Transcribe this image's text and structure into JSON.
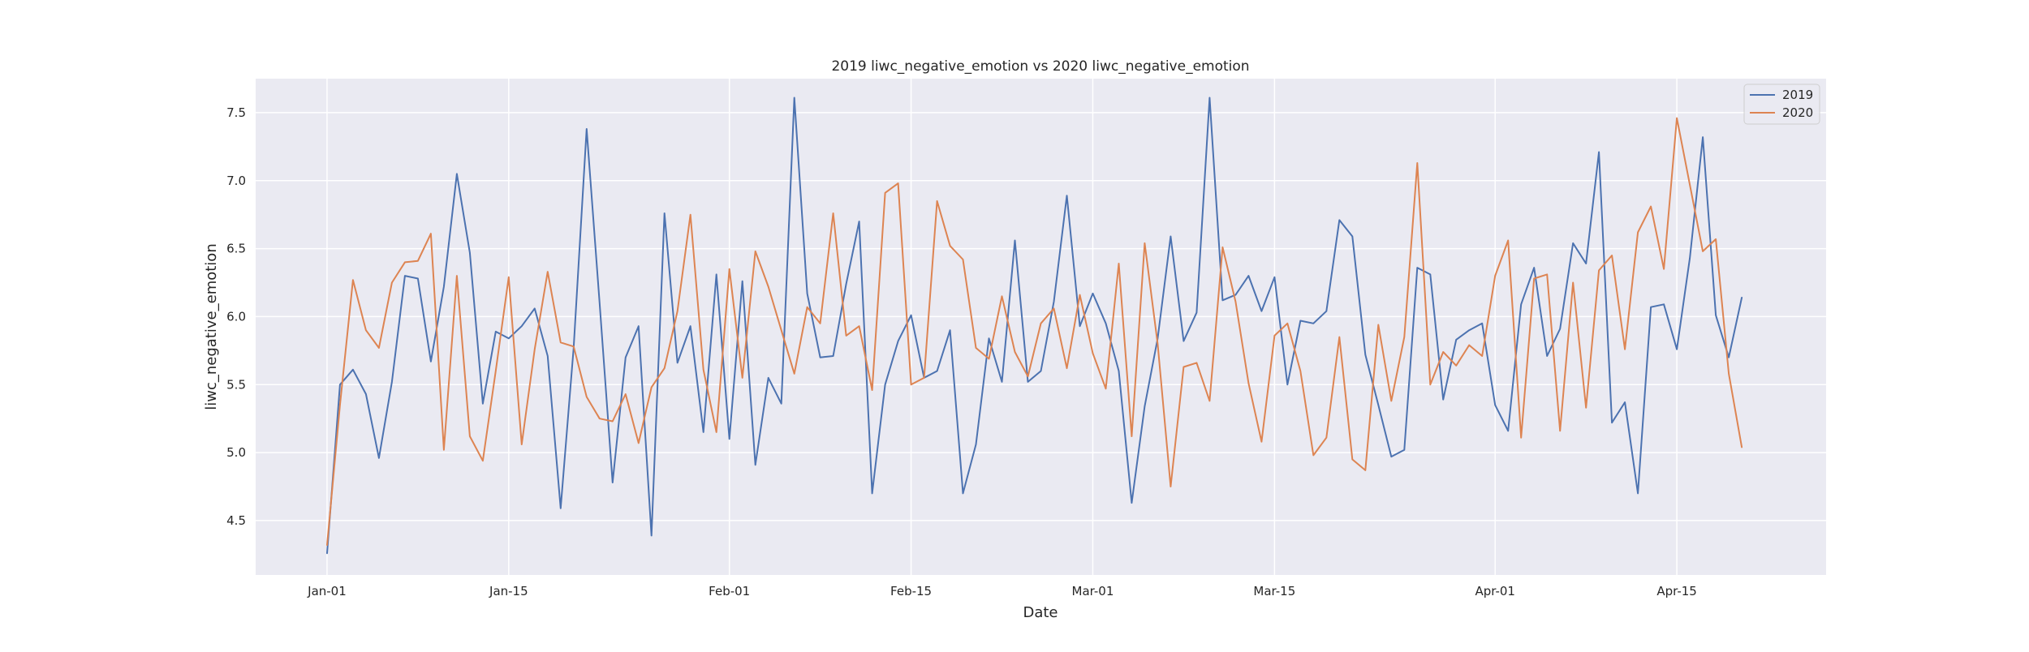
{
  "chart_data": {
    "type": "line",
    "title": "2019 liwc_negative_emotion vs 2020 liwc_negative_emotion",
    "xlabel": "Date",
    "ylabel": "liwc_negative_emotion",
    "ylim": [
      4.1,
      7.75
    ],
    "xlim_days": [
      -5.5,
      115.5
    ],
    "grid": true,
    "legend_position": "top-right",
    "x_ticks": [
      {
        "day": 0,
        "label": "Jan-01"
      },
      {
        "day": 14,
        "label": "Jan-15"
      },
      {
        "day": 31,
        "label": "Feb-01"
      },
      {
        "day": 45,
        "label": "Feb-15"
      },
      {
        "day": 59,
        "label": "Mar-01"
      },
      {
        "day": 73,
        "label": "Mar-15"
      },
      {
        "day": 90,
        "label": "Apr-01"
      },
      {
        "day": 104,
        "label": "Apr-15"
      }
    ],
    "y_ticks": [
      4.5,
      5.0,
      5.5,
      6.0,
      6.5,
      7.0,
      7.5
    ],
    "y_tick_labels": [
      "4.5",
      "5.0",
      "5.5",
      "6.0",
      "6.5",
      "7.0",
      "7.5"
    ],
    "series": [
      {
        "name": "2019",
        "color": "#4c72b0",
        "values": [
          4.26,
          5.5,
          5.61,
          5.43,
          4.96,
          5.52,
          6.3,
          6.28,
          5.67,
          6.22,
          7.05,
          6.47,
          5.36,
          5.89,
          5.84,
          5.93,
          6.06,
          5.71,
          4.59,
          5.77,
          7.38,
          6.1,
          4.78,
          5.7,
          5.93,
          4.39,
          6.76,
          5.66,
          5.93,
          5.15,
          6.31,
          5.1,
          6.26,
          4.91,
          5.55,
          5.36,
          7.61,
          6.17,
          5.7,
          5.71,
          6.24,
          6.7,
          4.7,
          5.5,
          5.82,
          6.01,
          5.55,
          5.6,
          5.9,
          4.7,
          5.06,
          5.84,
          5.52,
          6.56,
          5.52,
          5.6,
          6.11,
          6.89,
          5.93,
          6.17,
          5.95,
          5.6,
          4.63,
          5.34,
          5.84,
          6.59,
          5.82,
          6.03,
          7.61,
          6.12,
          6.16,
          6.3,
          6.04,
          6.29,
          5.5,
          5.97,
          5.95,
          6.04,
          6.71,
          6.59,
          5.72,
          5.35,
          4.97,
          5.02,
          6.36,
          6.31,
          5.39,
          5.83,
          5.9,
          5.95,
          5.35,
          5.16,
          6.09,
          6.36,
          5.71,
          5.91,
          6.54,
          6.39,
          7.21,
          5.22,
          5.37,
          4.7,
          6.07,
          6.09,
          5.76,
          6.43,
          7.32,
          6.01,
          5.7,
          6.14
        ]
      },
      {
        "name": "2020",
        "color": "#dd8452",
        "values": [
          4.32,
          5.35,
          6.27,
          5.9,
          5.77,
          6.25,
          6.4,
          6.41,
          6.61,
          5.02,
          6.3,
          5.12,
          4.94,
          5.6,
          6.29,
          5.06,
          5.76,
          6.33,
          5.81,
          5.78,
          5.41,
          5.25,
          5.23,
          5.43,
          5.07,
          5.48,
          5.62,
          6.04,
          6.75,
          5.61,
          5.15,
          6.35,
          5.55,
          6.48,
          6.22,
          5.9,
          5.58,
          6.07,
          5.95,
          6.76,
          5.86,
          5.93,
          5.46,
          6.91,
          6.98,
          5.5,
          5.55,
          6.85,
          6.52,
          6.42,
          5.77,
          5.69,
          6.15,
          5.74,
          5.56,
          5.95,
          6.06,
          5.62,
          6.16,
          5.73,
          5.47,
          6.39,
          5.12,
          6.54,
          5.8,
          4.75,
          5.63,
          5.66,
          5.38,
          6.51,
          6.11,
          5.51,
          5.08,
          5.86,
          5.95,
          5.6,
          4.98,
          5.11,
          5.85,
          4.95,
          4.87,
          5.94,
          5.38,
          5.85,
          7.13,
          5.5,
          5.74,
          5.64,
          5.79,
          5.71,
          6.3,
          6.56,
          5.11,
          6.28,
          6.31,
          5.16,
          6.25,
          5.33,
          6.34,
          6.45,
          5.76,
          6.62,
          6.81,
          6.35,
          7.46,
          6.97,
          6.48,
          6.57,
          5.58,
          5.04
        ]
      }
    ]
  }
}
